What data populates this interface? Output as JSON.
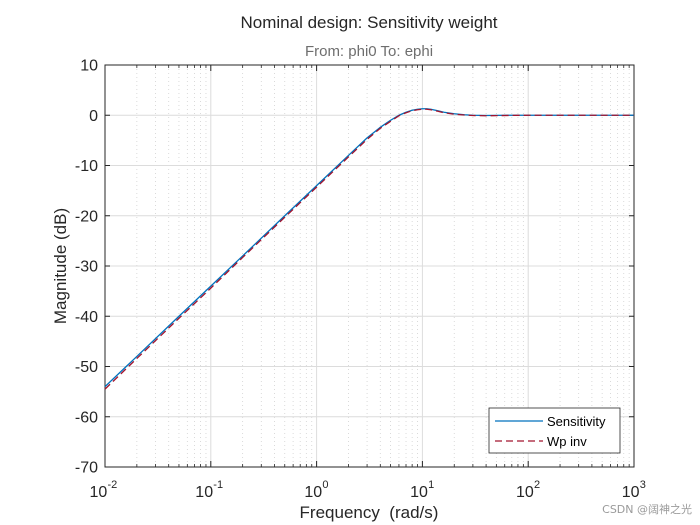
{
  "chart_data": {
    "type": "line",
    "title": "Nominal design: Sensitivity weight",
    "subtitle": "From: phi0  To: ephi",
    "xlabel": "Frequency  (rad/s)",
    "ylabel": "Magnitude (dB)",
    "xscale": "log",
    "xlim": [
      0.01,
      1000
    ],
    "ylim": [
      -70,
      10
    ],
    "x_ticks": [
      {
        "base": "10",
        "exp": "-2"
      },
      {
        "base": "10",
        "exp": "-1"
      },
      {
        "base": "10",
        "exp": "0"
      },
      {
        "base": "10",
        "exp": "1"
      },
      {
        "base": "10",
        "exp": "2"
      },
      {
        "base": "10",
        "exp": "3"
      }
    ],
    "y_ticks": [
      "10",
      "0",
      "-10",
      "-20",
      "-30",
      "-40",
      "-50",
      "-60",
      "-70"
    ],
    "grid": true,
    "legend": {
      "placement": "bottom-right"
    },
    "series": [
      {
        "name": "Sensitivity",
        "color": "#0072BD",
        "style": "solid",
        "x": [
          0.01,
          0.02,
          0.05,
          0.1,
          0.2,
          0.5,
          1,
          2,
          3,
          4,
          5,
          6,
          7,
          8,
          9,
          10,
          11,
          12,
          14,
          16,
          20,
          25,
          30,
          40,
          50,
          70,
          100,
          200,
          500,
          1000
        ],
        "y": [
          -54.0,
          -48.0,
          -40.0,
          -34.0,
          -28.0,
          -20.0,
          -14.0,
          -8.0,
          -4.5,
          -2.4,
          -1.0,
          0.0,
          0.6,
          1.0,
          1.2,
          1.3,
          1.3,
          1.2,
          0.9,
          0.6,
          0.3,
          0.1,
          0.0,
          -0.05,
          -0.03,
          0.0,
          0.0,
          0.0,
          0.0,
          0.0
        ]
      },
      {
        "name": "Wp inv",
        "color": "#A2142F",
        "style": "dashed",
        "x": [
          0.01,
          0.02,
          0.05,
          0.1,
          0.2,
          0.5,
          1,
          2,
          3,
          4,
          5,
          6,
          7,
          8,
          9,
          10,
          11,
          12,
          14,
          16,
          20,
          25,
          30,
          40,
          50,
          70,
          100,
          200,
          500,
          1000
        ],
        "y": [
          -54.5,
          -48.4,
          -40.4,
          -34.4,
          -28.3,
          -20.3,
          -14.3,
          -8.3,
          -4.8,
          -2.6,
          -1.2,
          -0.1,
          0.5,
          0.9,
          1.1,
          1.2,
          1.2,
          1.1,
          0.8,
          0.5,
          0.2,
          0.05,
          -0.05,
          -0.1,
          -0.08,
          -0.03,
          0.0,
          0.0,
          0.0,
          0.0
        ]
      }
    ]
  },
  "watermark": "CSDN @阔神之光"
}
